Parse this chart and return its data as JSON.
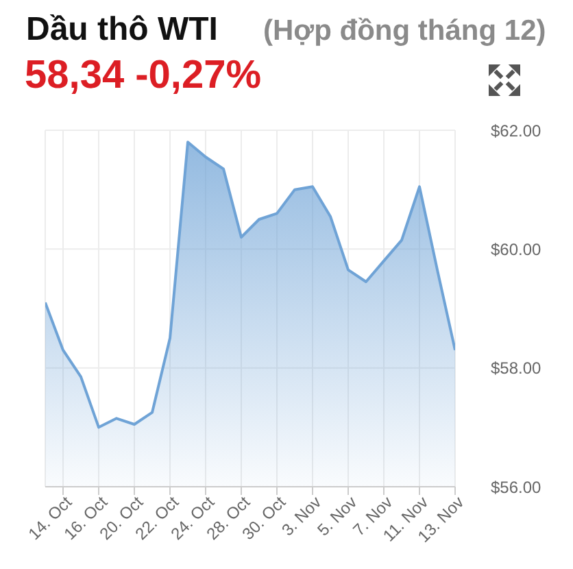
{
  "chart_data": {
    "type": "area",
    "title": "Dầu thô WTI",
    "subtitle": "(Hợp đồng tháng 12)",
    "annotations": [
      "58,34 -0,27%"
    ],
    "categories": [
      null,
      "14. Oct",
      null,
      "16. Oct",
      null,
      "20. Oct",
      null,
      "22. Oct",
      null,
      "24. Oct",
      null,
      "28. Oct",
      null,
      "30. Oct",
      null,
      "3. Nov",
      null,
      "5. Nov",
      null,
      "7. Nov",
      null,
      "11. Nov",
      null,
      "13. Nov"
    ],
    "values": [
      59.1,
      58.3,
      57.85,
      57.0,
      57.15,
      57.05,
      57.25,
      58.5,
      61.8,
      61.55,
      61.35,
      60.2,
      60.5,
      60.6,
      61.0,
      61.05,
      60.55,
      59.65,
      59.45,
      59.8,
      60.15,
      61.05,
      59.65,
      58.3
    ],
    "color": "#6fa3d6",
    "ylim": [
      56,
      62
    ],
    "yticks": [
      {
        "value": 56,
        "label": "$56.00"
      },
      {
        "value": 58,
        "label": "$58.00"
      },
      {
        "value": 60,
        "label": "$60.00"
      },
      {
        "value": 62,
        "label": "$62.00"
      }
    ],
    "grid": true
  }
}
